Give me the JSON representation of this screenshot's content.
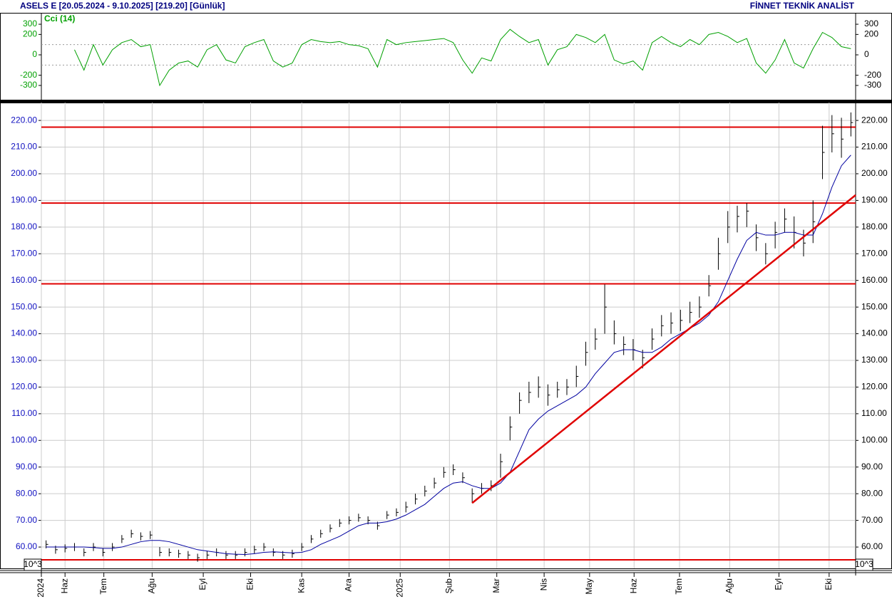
{
  "header": {
    "left": "ASELS E  [20.05.2024 - 9.10.2025]  [219.20]  [Günlük]",
    "right": "FİNNET TEKNİK ANALİST"
  },
  "chart_data": [
    {
      "type": "line",
      "title": "Cci (14)",
      "color": "#00a000",
      "ylim": [
        -440,
        412
      ],
      "yticks": [
        300,
        200,
        0,
        -200,
        -300
      ],
      "reference_lines": [
        100,
        -100
      ],
      "series": [
        {
          "name": "Cci (14)",
          "color": "#00a000",
          "values": [
            null,
            null,
            null,
            50,
            -150,
            100,
            -100,
            50,
            120,
            150,
            80,
            100,
            -300,
            -150,
            -80,
            -60,
            -120,
            50,
            100,
            -50,
            -80,
            80,
            120,
            150,
            -60,
            -120,
            -80,
            100,
            150,
            130,
            120,
            130,
            100,
            90,
            60,
            -120,
            150,
            100,
            120,
            130,
            140,
            150,
            160,
            120,
            -50,
            -180,
            -30,
            -60,
            150,
            250,
            180,
            120,
            150,
            -100,
            50,
            80,
            200,
            170,
            120,
            200,
            -50,
            -90,
            -60,
            -150,
            120,
            180,
            120,
            80,
            150,
            100,
            200,
            220,
            180,
            120,
            160,
            -80,
            -180,
            -50,
            150,
            -80,
            -130,
            60,
            220,
            170,
            80,
            60
          ]
        }
      ]
    },
    {
      "type": "hlc",
      "color": "#000000",
      "unit_label": "10^3",
      "grid": true,
      "xlim": [
        0,
        86
      ],
      "xticks": [
        {
          "value": 0,
          "label": "2024"
        },
        {
          "value": 2.5,
          "label": "Haz"
        },
        {
          "value": 6.6,
          "label": "Tem"
        },
        {
          "value": 11.7,
          "label": "Ağu"
        },
        {
          "value": 17.1,
          "label": "Eyl"
        },
        {
          "value": 22.1,
          "label": "Eki"
        },
        {
          "value": 27.5,
          "label": "Kas"
        },
        {
          "value": 32.5,
          "label": "Ara"
        },
        {
          "value": 37.9,
          "label": "2025"
        },
        {
          "value": 43.1,
          "label": "Şub"
        },
        {
          "value": 48.1,
          "label": "Mar"
        },
        {
          "value": 53.1,
          "label": "Nis"
        },
        {
          "value": 57.9,
          "label": "May"
        },
        {
          "value": 62.6,
          "label": "Haz"
        },
        {
          "value": 67.4,
          "label": "Tem"
        },
        {
          "value": 72.7,
          "label": "Ağu"
        },
        {
          "value": 77.9,
          "label": "Eyl"
        },
        {
          "value": 83.2,
          "label": "Eki"
        }
      ],
      "ylim": [
        52,
        226.7
      ],
      "yticks": [
        {
          "value": 60,
          "label": "60.00"
        },
        {
          "value": 70,
          "label": "70.00"
        },
        {
          "value": 80,
          "label": "80.00"
        },
        {
          "value": 90,
          "label": "90.00"
        },
        {
          "value": 100,
          "label": "100.00"
        },
        {
          "value": 110,
          "label": "110.00"
        },
        {
          "value": 120,
          "label": "120.00"
        },
        {
          "value": 130,
          "label": "130.00"
        },
        {
          "value": 140,
          "label": "140.00"
        },
        {
          "value": 150,
          "label": "150.00"
        },
        {
          "value": 160,
          "label": "160.00"
        },
        {
          "value": 170,
          "label": "170.00"
        },
        {
          "value": 180,
          "label": "180.00"
        },
        {
          "value": 190,
          "label": "190.00"
        },
        {
          "value": 200,
          "label": "200.00"
        },
        {
          "value": 210,
          "label": "210.00"
        },
        {
          "value": 220,
          "label": "220.00"
        }
      ],
      "high": [
        62.5,
        60.5,
        61,
        61.5,
        59.5,
        61.5,
        59.5,
        61.5,
        64.5,
        66.5,
        65.5,
        66,
        60,
        59.5,
        59,
        58.5,
        57.5,
        58.5,
        59.5,
        58.5,
        58.5,
        59.5,
        60.5,
        61.5,
        59.5,
        58.5,
        59,
        61.5,
        64.5,
        66.5,
        68.5,
        70.5,
        71.5,
        72.5,
        71.5,
        69.5,
        73.5,
        74.5,
        77,
        80,
        83,
        86,
        90,
        91,
        88,
        82,
        84,
        85,
        95,
        109,
        118,
        122,
        124,
        121,
        122,
        123,
        128,
        137,
        142,
        158.5,
        145,
        139,
        138,
        134,
        142,
        147,
        148,
        149,
        152,
        154,
        162,
        176,
        186,
        188,
        189,
        181,
        174,
        182,
        187,
        184,
        179,
        190,
        218,
        222,
        221,
        223
      ],
      "low": [
        59.5,
        57.5,
        58,
        58.5,
        56.5,
        58.5,
        56.5,
        58.5,
        61.5,
        63.5,
        62.5,
        63,
        56.5,
        56.5,
        56,
        55.5,
        54.5,
        55.5,
        56.5,
        55.5,
        55.5,
        56.5,
        57.5,
        58.5,
        56.5,
        55.5,
        56,
        58.5,
        61.5,
        63.5,
        65.5,
        67.5,
        68.5,
        69.5,
        68.5,
        66.5,
        70.5,
        71.5,
        73,
        76,
        79,
        82,
        86,
        87,
        84,
        76.5,
        80,
        81,
        86,
        100,
        110,
        114,
        116,
        113,
        116,
        117,
        120,
        128,
        134,
        140,
        136,
        132,
        130,
        127,
        134,
        139,
        140,
        141,
        144,
        146,
        154,
        164,
        174,
        178,
        180,
        171,
        166,
        172,
        178,
        172,
        169,
        174,
        198,
        208,
        206,
        214
      ],
      "close": [
        61,
        59,
        59.5,
        60,
        58,
        60,
        58,
        60,
        63,
        65,
        64,
        64.5,
        58,
        58,
        57.5,
        57,
        56,
        57,
        58,
        57,
        57,
        58,
        59,
        60,
        58,
        57,
        57.5,
        60,
        63,
        65,
        67,
        69,
        70,
        71,
        70,
        68,
        72,
        73,
        75,
        78,
        81,
        84,
        88,
        89,
        86,
        80,
        82,
        83,
        92,
        105,
        115,
        118,
        120,
        117,
        119,
        120,
        124,
        133,
        138,
        150,
        140,
        136,
        134,
        131,
        138,
        143,
        144,
        145,
        148,
        150,
        158,
        170,
        180,
        184,
        186,
        176,
        170,
        178,
        183,
        178,
        174,
        182,
        208,
        215,
        213,
        219.2
      ],
      "ma": {
        "color": "#0000a0",
        "values": [
          60,
          60,
          60,
          60,
          60,
          59.8,
          59.5,
          59.5,
          60,
          61,
          62,
          62.5,
          62.5,
          62,
          61,
          60,
          59,
          58.5,
          58,
          57.5,
          57.3,
          57.2,
          57.5,
          58,
          58.2,
          58,
          57.8,
          58,
          59,
          61,
          62.5,
          64,
          66,
          68,
          69,
          69,
          69.5,
          70.5,
          72,
          74,
          76,
          79,
          82,
          84,
          84.5,
          83,
          82,
          82,
          84,
          88,
          96,
          104,
          108,
          111,
          113,
          115,
          117,
          120,
          125,
          129,
          133,
          134,
          134,
          133,
          133,
          135,
          138,
          140,
          142,
          144,
          147,
          152,
          160,
          168,
          175,
          178,
          177,
          177,
          178,
          178,
          177,
          177,
          185,
          195,
          203,
          207
        ]
      },
      "hlines": [
        {
          "value": 217.5,
          "color": "#e00000"
        },
        {
          "value": 189,
          "color": "#e00000"
        },
        {
          "value": 158.7,
          "color": "#e00000"
        },
        {
          "value": 55.2,
          "color": "#e00000"
        }
      ],
      "trendline": {
        "color": "#e00000",
        "from": [
          45.5,
          76.5
        ],
        "to": [
          86,
          192
        ]
      }
    }
  ]
}
